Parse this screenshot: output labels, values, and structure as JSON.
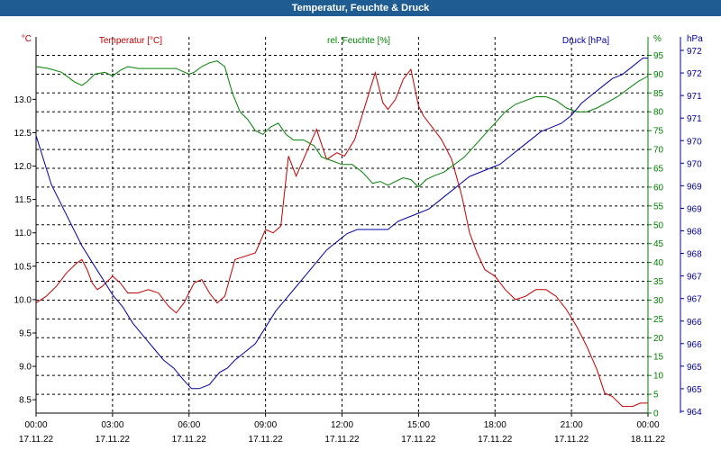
{
  "chart_data": {
    "type": "line",
    "title": "Temperatur, Feuchte & Druck",
    "x_axis": {
      "time_labels": [
        "00:00",
        "03:00",
        "06:00",
        "09:00",
        "12:00",
        "15:00",
        "18:00",
        "21:00",
        "00:00"
      ],
      "date_labels": [
        "17.11.22",
        "17.11.22",
        "17.11.22",
        "17.11.22",
        "17.11.22",
        "17.11.22",
        "17.11.22",
        "17.11.22",
        "18.11.22"
      ],
      "range_hours": [
        0,
        24
      ]
    },
    "axes": {
      "temperature": {
        "unit": "°C",
        "label": "Temperatur [°C]",
        "color": "#c00000",
        "ylim": [
          8.3,
          13.8
        ],
        "ticks": [
          8.5,
          9.0,
          9.5,
          10.0,
          10.5,
          11.0,
          11.5,
          12.0,
          12.5,
          13.0
        ],
        "tick_labels": [
          "8.5",
          "9.0",
          "9.5",
          "10.0",
          "10.5",
          "11.0",
          "11.5",
          "12.0",
          "12.5",
          "13.0"
        ]
      },
      "humidity": {
        "unit": "%",
        "label": "rel. Feuchte [%]",
        "color": "#008000",
        "ylim": [
          0,
          97.5
        ],
        "ticks": [
          0,
          5,
          10,
          15,
          20,
          25,
          30,
          35,
          40,
          45,
          50,
          55,
          60,
          65,
          70,
          75,
          80,
          85,
          90,
          95
        ],
        "tick_labels": [
          "0",
          "5",
          "10",
          "15",
          "20",
          "25",
          "30",
          "35",
          "40",
          "45",
          "50",
          "55",
          "60",
          "65",
          "70",
          "75",
          "80",
          "85",
          "90",
          "95"
        ]
      },
      "pressure": {
        "unit": "hPa",
        "label": "Druck [hPa]",
        "color": "#0000a0",
        "ylim": [
          963.8,
          972.8
        ],
        "tick_labels": [
          "964",
          "965",
          "965",
          "966",
          "966",
          "967",
          "967",
          "968",
          "968",
          "969",
          "969",
          "970",
          "970",
          "971",
          "971",
          "972",
          "972"
        ]
      }
    },
    "series": [
      {
        "name": "Temperatur [°C]",
        "axis": "temperature",
        "color": "#c00000",
        "x": [
          0,
          0.4,
          0.8,
          1.2,
          1.6,
          1.8,
          2.0,
          2.2,
          2.4,
          2.6,
          3.0,
          3.3,
          3.6,
          4.0,
          4.4,
          4.8,
          5.2,
          5.5,
          5.8,
          6.2,
          6.5,
          6.8,
          7.1,
          7.4,
          7.8,
          8.2,
          8.6,
          9.0,
          9.3,
          9.6,
          9.9,
          10.2,
          10.6,
          11.0,
          11.4,
          11.8,
          12.1,
          12.5,
          12.9,
          13.3,
          13.6,
          13.8,
          14.1,
          14.4,
          14.7,
          15.0,
          15.2,
          15.5,
          15.9,
          16.3,
          16.7,
          17.0,
          17.3,
          17.6,
          18.0,
          18.4,
          18.8,
          19.2,
          19.6,
          20.0,
          20.4,
          20.8,
          21.2,
          21.6,
          22.0,
          22.3,
          22.6,
          23.0,
          23.4,
          23.7,
          24.0
        ],
        "values": [
          9.95,
          10.05,
          10.2,
          10.4,
          10.55,
          10.6,
          10.45,
          10.25,
          10.15,
          10.2,
          10.35,
          10.25,
          10.1,
          10.1,
          10.15,
          10.1,
          9.9,
          9.8,
          9.95,
          10.25,
          10.3,
          10.1,
          9.95,
          10.05,
          10.6,
          10.65,
          10.7,
          11.05,
          11.0,
          11.1,
          12.15,
          11.85,
          12.2,
          12.55,
          12.1,
          12.2,
          12.15,
          12.4,
          12.9,
          13.4,
          12.95,
          12.85,
          13.0,
          13.3,
          13.45,
          12.9,
          12.75,
          12.6,
          12.4,
          12.1,
          11.55,
          11.0,
          10.7,
          10.45,
          10.35,
          10.15,
          10.0,
          10.05,
          10.15,
          10.15,
          10.05,
          9.85,
          9.6,
          9.3,
          8.95,
          8.6,
          8.55,
          8.4,
          8.4,
          8.45,
          8.45
        ]
      },
      {
        "name": "rel. Feuchte [%]",
        "axis": "humidity",
        "color": "#008000",
        "x": [
          0,
          0.5,
          1.0,
          1.5,
          1.8,
          2.0,
          2.3,
          2.7,
          3.0,
          3.3,
          3.6,
          4.0,
          4.5,
          5.0,
          5.5,
          6.0,
          6.2,
          6.5,
          6.8,
          7.1,
          7.4,
          7.7,
          8.0,
          8.3,
          8.6,
          8.9,
          9.2,
          9.5,
          9.8,
          10.1,
          10.5,
          10.9,
          11.2,
          11.6,
          12.0,
          12.4,
          12.8,
          13.2,
          13.5,
          13.8,
          14.1,
          14.4,
          14.7,
          15.0,
          15.3,
          15.6,
          16.0,
          16.4,
          16.8,
          17.2,
          17.6,
          18.0,
          18.4,
          18.8,
          19.2,
          19.6,
          20.0,
          20.4,
          20.8,
          21.2,
          21.6,
          22.0,
          22.4,
          22.8,
          23.2,
          23.6,
          24.0
        ],
        "values": [
          92,
          91.5,
          90.5,
          88,
          87,
          88,
          90,
          90.5,
          89.5,
          91,
          92,
          91.5,
          91.5,
          91.5,
          91.5,
          90,
          90.5,
          92,
          93,
          93.5,
          92,
          85,
          80,
          78,
          75,
          74,
          76,
          77,
          74,
          72.5,
          72.5,
          71,
          68,
          67,
          66,
          66,
          64,
          61,
          61.5,
          60.5,
          61.5,
          62.5,
          62,
          60,
          62,
          63,
          64,
          66,
          68,
          71,
          74,
          77,
          80,
          82,
          83,
          84,
          84,
          83,
          81,
          80,
          80,
          81,
          82.5,
          84,
          86,
          88,
          89.5
        ]
      },
      {
        "name": "Druck [hPa]",
        "axis": "pressure",
        "color": "#0000a0",
        "x": [
          0,
          0.3,
          0.6,
          1.0,
          1.4,
          1.8,
          2.2,
          2.6,
          3.0,
          3.4,
          3.8,
          4.2,
          4.6,
          5.0,
          5.4,
          5.8,
          6.1,
          6.4,
          6.8,
          7.2,
          7.5,
          7.8,
          8.2,
          8.6,
          9.0,
          9.4,
          9.8,
          10.2,
          10.6,
          11.0,
          11.4,
          11.8,
          12.2,
          12.6,
          13.0,
          13.4,
          13.8,
          14.2,
          14.6,
          15.0,
          15.4,
          15.8,
          16.2,
          16.6,
          17.0,
          17.4,
          17.8,
          18.2,
          18.6,
          19.0,
          19.4,
          19.8,
          20.2,
          20.6,
          21.0,
          21.4,
          21.8,
          22.2,
          22.6,
          23.0,
          23.4,
          23.8,
          24.0
        ],
        "values": [
          970.6,
          970.0,
          969.4,
          968.9,
          968.4,
          967.9,
          967.5,
          967.1,
          966.7,
          966.4,
          966.0,
          965.7,
          965.4,
          965.1,
          964.9,
          964.6,
          964.4,
          964.4,
          964.5,
          964.8,
          964.9,
          965.1,
          965.3,
          965.5,
          965.9,
          966.3,
          966.6,
          966.9,
          967.2,
          967.5,
          967.8,
          968.0,
          968.2,
          968.3,
          968.3,
          968.3,
          968.3,
          968.5,
          968.6,
          968.7,
          968.8,
          969.0,
          969.2,
          969.4,
          969.6,
          969.7,
          969.8,
          969.9,
          970.1,
          970.3,
          970.5,
          970.7,
          970.8,
          970.9,
          971.1,
          971.4,
          971.6,
          971.8,
          972.0,
          972.1,
          972.3,
          972.5,
          972.5
        ]
      }
    ],
    "grid": true
  }
}
